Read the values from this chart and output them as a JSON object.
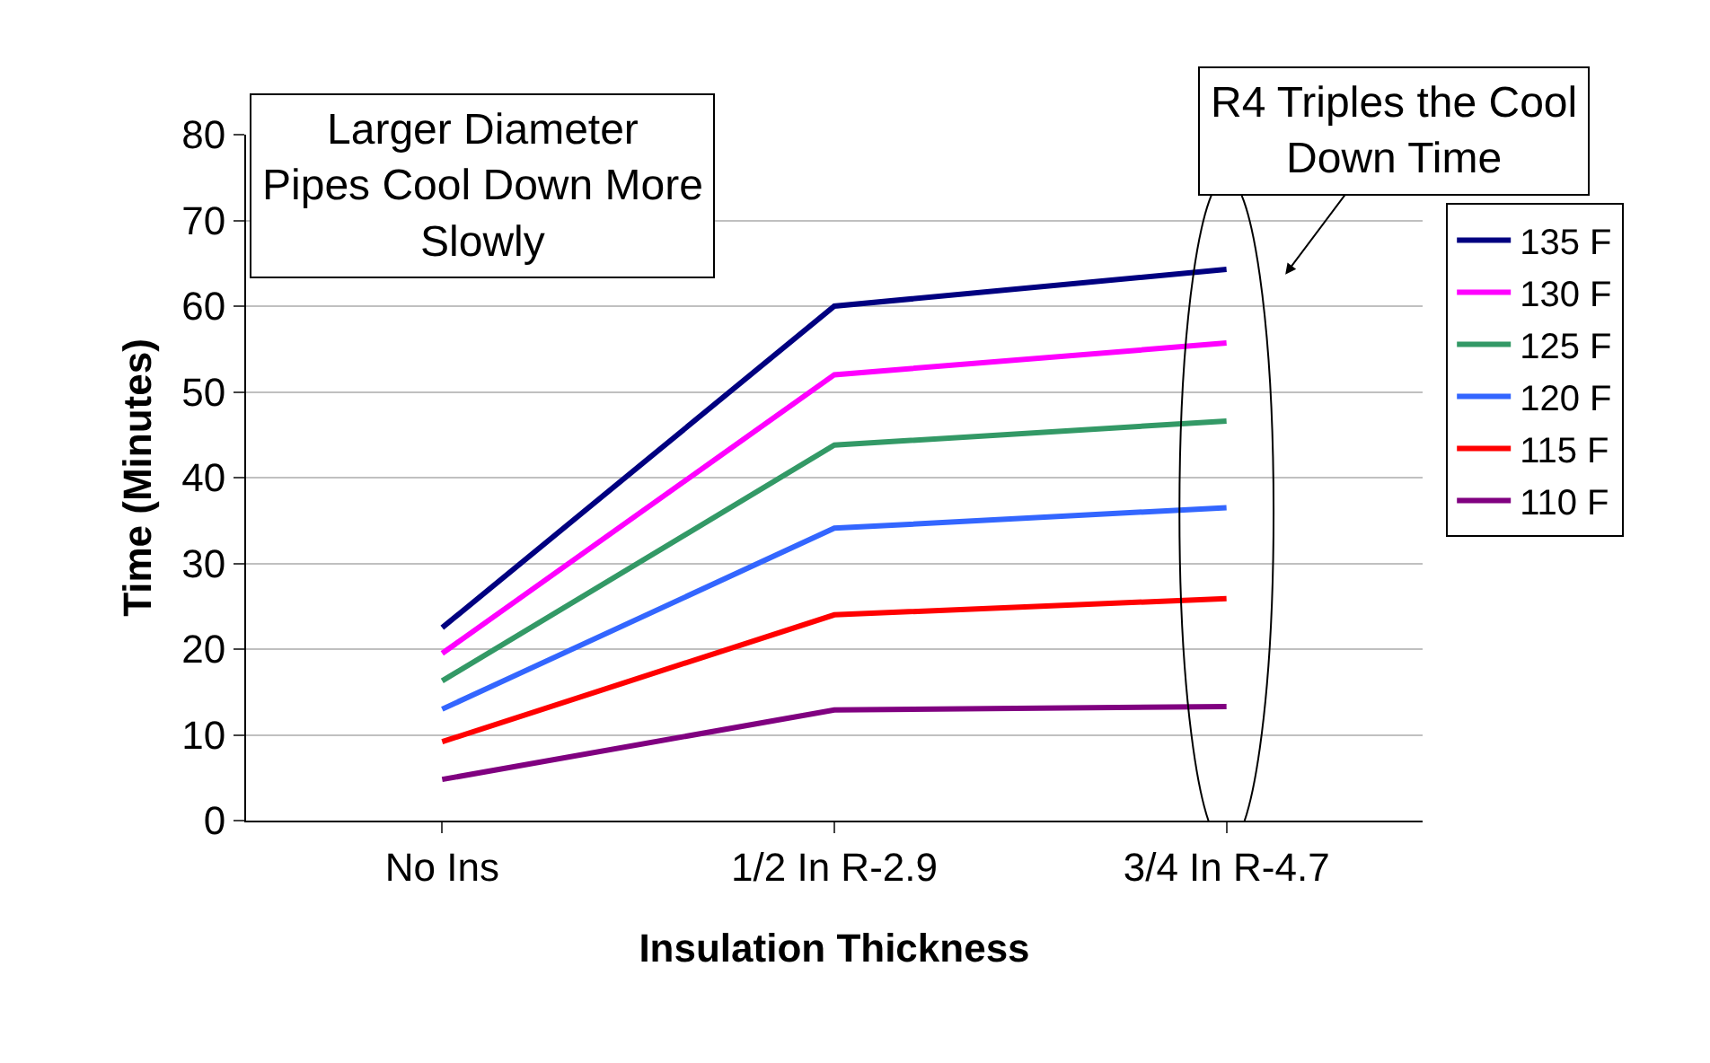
{
  "chart_data": {
    "type": "line",
    "xlabel": "Insulation Thickness",
    "ylabel": "Time (Minutes)",
    "categories": [
      "No Ins",
      "1/2 In R-2.9",
      "3/4 In R-4.7"
    ],
    "ylim": [
      0,
      80
    ],
    "yticks": [
      0,
      10,
      20,
      30,
      40,
      50,
      60,
      70,
      80
    ],
    "grid": "y",
    "legend": "right",
    "marker": "none",
    "line_style": "solid",
    "series": [
      {
        "name": "135 F",
        "color": "#000080",
        "values": [
          22.5,
          60,
          64.3
        ]
      },
      {
        "name": "130 F",
        "color": "#ff00ff",
        "values": [
          19.5,
          52,
          55.7
        ]
      },
      {
        "name": "125 F",
        "color": "#339966",
        "values": [
          16.3,
          43.8,
          46.6
        ]
      },
      {
        "name": "120 F",
        "color": "#3366ff",
        "values": [
          13,
          34.1,
          36.5
        ]
      },
      {
        "name": "115 F",
        "color": "#ff0000",
        "values": [
          9.2,
          24,
          25.9
        ]
      },
      {
        "name": "110 F",
        "color": "#800080",
        "values": [
          4.8,
          12.9,
          13.3
        ]
      }
    ],
    "annotations": [
      "Larger Diameter Pipes Cool Down More Slowly",
      {
        "text": "R4 Triples the Cool Down Time",
        "x": "3/4 In R-4.7",
        "y": 64.3
      }
    ]
  }
}
